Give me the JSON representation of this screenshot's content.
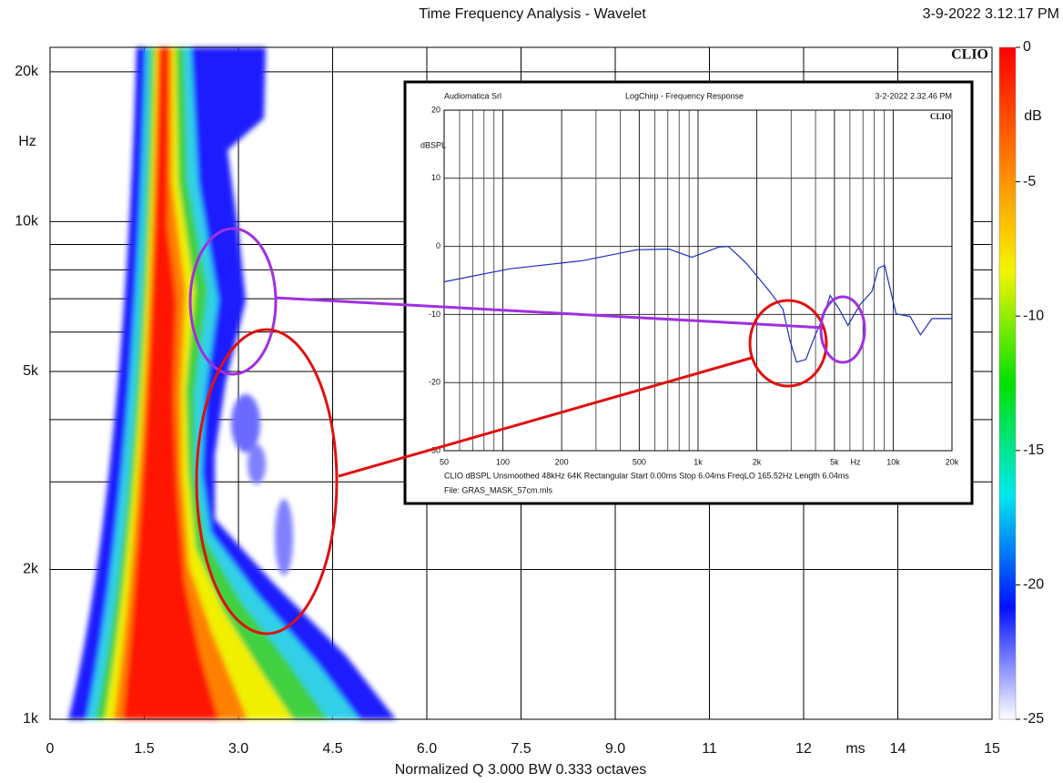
{
  "chart_data": [
    {
      "type": "spectrogram",
      "title": "Time Frequency Analysis - Wavelet",
      "timestamp": "3-9-2022 3.12.17 PM",
      "brand": "CLIO",
      "xlabel": "Normalized  Q 3.000 BW 0.333 octaves",
      "x_unit": "ms",
      "y_unit": "Hz",
      "xlim": [
        0,
        15
      ],
      "xticks": [
        0,
        1.5,
        {
          "value": 3,
          "label": "3.0"
        },
        4.5,
        {
          "value": 6,
          "label": "6.0"
        },
        7.5,
        {
          "value": 9,
          "label": "9.0"
        },
        {
          "value": 10.5,
          "label": "11"
        },
        12,
        {
          "value": 13.5,
          "label": "14"
        },
        15
      ],
      "yscale": "log",
      "ylim": [
        1000,
        22400
      ],
      "yticks": [
        {
          "value": 1000,
          "label": "1k"
        },
        {
          "value": 2000,
          "label": "2k"
        },
        {
          "value": 5000,
          "label": "5k"
        },
        {
          "value": 10000,
          "label": "10k"
        },
        {
          "value": 20000,
          "label": "20k"
        }
      ],
      "y_minor_grid": [
        3000,
        4000,
        6000,
        7000,
        8000,
        9000
      ],
      "grid": true,
      "colorbar": {
        "label": "dB",
        "lim": [
          -25,
          0
        ],
        "ticks": [
          0,
          -5,
          -10,
          -15,
          -20,
          -25
        ],
        "colormap": [
          "#ff0000",
          "#ff7a00",
          "#f5f500",
          "#00e000",
          "#00e8f0",
          "#0010ff",
          "#ffffff"
        ]
      }
    },
    {
      "type": "line",
      "title": "LogChirp - Frequency Response",
      "source": "Audiomatica Srl",
      "timestamp": "3-2-2022 2.32.46 PM",
      "brand": "CLIO",
      "ylabel": "dBSPL",
      "x_unit": "Hz",
      "xscale": "log",
      "xlim": [
        50,
        20000
      ],
      "xticks": [
        50,
        100,
        200,
        500,
        {
          "value": 1000,
          "label": "1k"
        },
        {
          "value": 2000,
          "label": "2k"
        },
        {
          "value": 5000,
          "label": "5k"
        },
        {
          "value": 10000,
          "label": "10k"
        },
        {
          "value": 20000,
          "label": "20k"
        }
      ],
      "x_minor_grid": [
        60,
        70,
        80,
        90,
        300,
        400,
        600,
        700,
        800,
        900,
        3000,
        4000,
        6000,
        7000,
        8000,
        9000
      ],
      "ylim": [
        -30,
        20
      ],
      "yticks": [
        -30,
        -20,
        -10,
        0,
        10,
        20
      ],
      "x": [
        50,
        108,
        256,
        487,
        710,
        930,
        1280,
        1430,
        1770,
        2310,
        2720,
        2960,
        3200,
        3570,
        3960,
        4400,
        4750,
        5280,
        5860,
        6750,
        7780,
        8400,
        9040,
        10350,
        12200,
        13800,
        15800,
        20000
      ],
      "series": [
        {
          "color": "#1c2cc0",
          "values": [
            -5.2,
            -3.3,
            -2.1,
            -0.5,
            -0.4,
            -1.6,
            -0.1,
            0,
            -2.5,
            -6.5,
            -9.2,
            -13.9,
            -17,
            -16.6,
            -13.2,
            -10.3,
            -7.2,
            -9.2,
            -11.6,
            -8.6,
            -6.6,
            -3.2,
            -2.8,
            -9.9,
            -10.3,
            -13,
            -10.6,
            -10.6
          ]
        }
      ],
      "footer": "CLIO dBSPL Unsmoothed 48kHz 64K Rectangular Start 0.00ms Stop 6.04ms FreqLO 165.52Hz Length 6.04ms",
      "file": "File: GRAS_MASK_57cm.mls"
    }
  ]
}
